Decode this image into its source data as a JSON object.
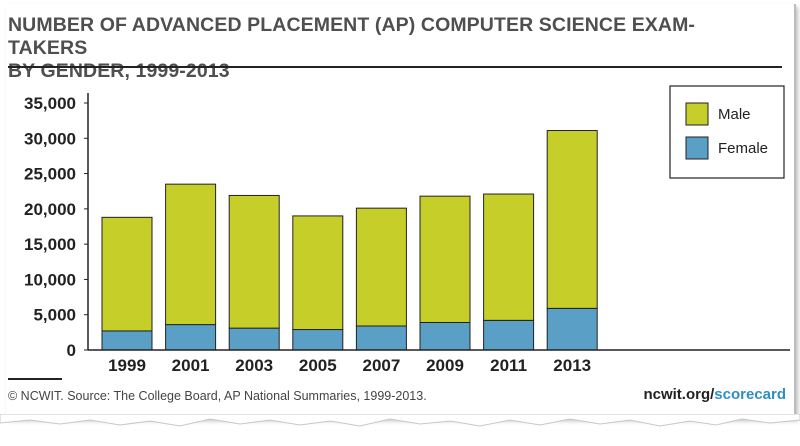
{
  "title_line1": "NUMBER OF ADVANCED PLACEMENT (AP) COMPUTER SCIENCE EXAM-TAKERS",
  "title_line2": "BY GENDER, 1999-2013",
  "footer": {
    "source": "© NCWIT. Source: The College Board, AP National Summaries, 1999-2013.",
    "brand_main": "ncwit.org/",
    "brand_accent": "scorecard"
  },
  "colors": {
    "male": "#c6cf2a",
    "female": "#5a9fc6",
    "accent": "#2e8fc4"
  },
  "chart_data": {
    "type": "bar",
    "stacked": true,
    "categories": [
      "1999",
      "2001",
      "2003",
      "2005",
      "2007",
      "2009",
      "2011",
      "2013"
    ],
    "series": [
      {
        "name": "Female",
        "values": [
          2700,
          3600,
          3100,
          2900,
          3400,
          3900,
          4200,
          5900
        ]
      },
      {
        "name": "Male",
        "values": [
          16100,
          19900,
          18800,
          16100,
          16700,
          17900,
          17900,
          25200
        ]
      }
    ],
    "ylim": [
      0,
      35000
    ],
    "yticks": [
      "0",
      "5,000",
      "10,000",
      "15,000",
      "20,000",
      "25,000",
      "30,000",
      "35,000"
    ],
    "legend": [
      "Male",
      "Female"
    ],
    "legend_position": "top-right",
    "grid": false
  }
}
